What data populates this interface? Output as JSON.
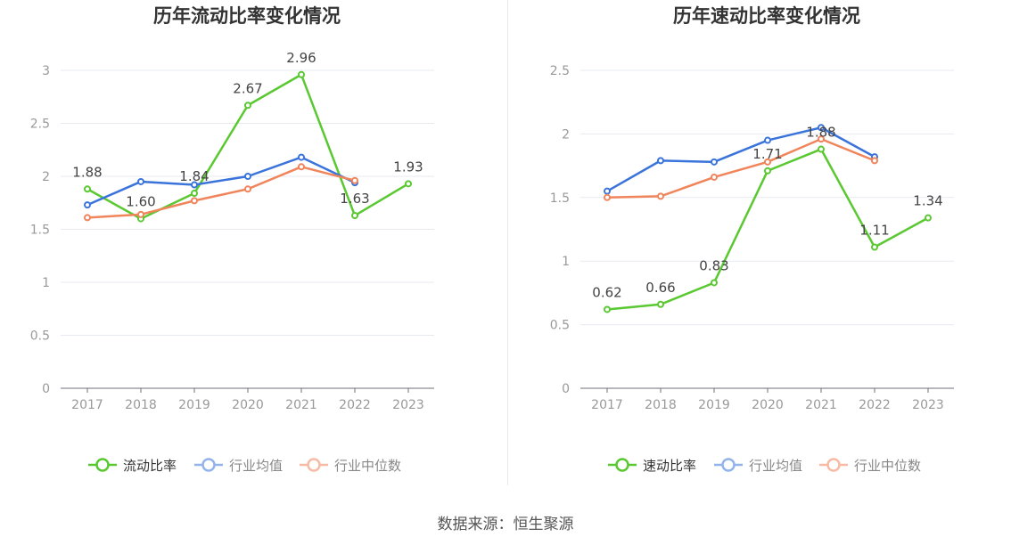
{
  "source_text": "数据来源：恒生聚源",
  "chart_data": [
    {
      "type": "line",
      "title": "历年流动比率变化情况",
      "categories": [
        "2017",
        "2018",
        "2019",
        "2020",
        "2021",
        "2022",
        "2023"
      ],
      "ylim": [
        0,
        3
      ],
      "yticks": [
        "0",
        "0.5",
        "1",
        "1.5",
        "2",
        "2.5",
        "3"
      ],
      "ytick_values": [
        0,
        0.5,
        1,
        1.5,
        2,
        2.5,
        3
      ],
      "grid": true,
      "legend_position": "bottom-center",
      "series": [
        {
          "name": "流动比率",
          "color": "#5ac831",
          "values": [
            1.88,
            1.6,
            1.84,
            2.67,
            2.96,
            1.63,
            1.93
          ],
          "labels": [
            "1.88",
            "1.60",
            "1.84",
            "2.67",
            "2.96",
            "1.63",
            "1.93"
          ],
          "highlight": true
        },
        {
          "name": "行业均值",
          "color": "#3a74db",
          "values": [
            1.73,
            1.95,
            1.92,
            2.0,
            2.18,
            1.94,
            null
          ]
        },
        {
          "name": "行业中位数",
          "color": "#f0845b",
          "values": [
            1.61,
            1.64,
            1.77,
            1.88,
            2.09,
            1.96,
            null
          ]
        }
      ]
    },
    {
      "type": "line",
      "title": "历年速动比率变化情况",
      "categories": [
        "2017",
        "2018",
        "2019",
        "2020",
        "2021",
        "2022",
        "2023"
      ],
      "ylim": [
        0,
        2.5
      ],
      "yticks": [
        "0",
        "0.5",
        "1",
        "1.5",
        "2",
        "2.5"
      ],
      "ytick_values": [
        0,
        0.5,
        1,
        1.5,
        2,
        2.5
      ],
      "grid": true,
      "legend_position": "bottom-center",
      "series": [
        {
          "name": "速动比率",
          "color": "#5ac831",
          "values": [
            0.62,
            0.66,
            0.83,
            1.71,
            1.88,
            1.11,
            1.34
          ],
          "labels": [
            "0.62",
            "0.66",
            "0.83",
            "1.71",
            "1.88",
            "1.11",
            "1.34"
          ],
          "highlight": true
        },
        {
          "name": "行业均值",
          "color": "#3a74db",
          "values": [
            1.55,
            1.79,
            1.78,
            1.95,
            2.05,
            1.82,
            null
          ]
        },
        {
          "name": "行业中位数",
          "color": "#f0845b",
          "values": [
            1.5,
            1.51,
            1.66,
            1.78,
            1.96,
            1.79,
            null
          ]
        }
      ]
    }
  ]
}
